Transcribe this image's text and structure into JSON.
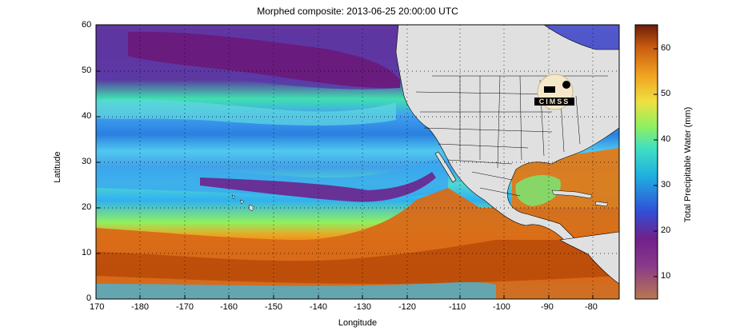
{
  "title": "Morphed composite: 2013-06-25 20:00:00 UTC",
  "xlabel": "Longitude",
  "ylabel": "Latitude",
  "colorbar": {
    "label": "Total Precipitable Water (mm)",
    "ticks": [
      "10",
      "20",
      "30",
      "40",
      "50",
      "60"
    ]
  },
  "logo_text": "CIMSS",
  "chart_data": {
    "type": "heatmap",
    "title": "Morphed composite: 2013-06-25 20:00:00 UTC",
    "xlabel": "Longitude",
    "ylabel": "Latitude",
    "x_ticks": [
      "170",
      "-180",
      "-170",
      "-160",
      "-150",
      "-140",
      "-130",
      "-120",
      "-110",
      "-100",
      "-90",
      "-80"
    ],
    "y_ticks": [
      "0",
      "10",
      "20",
      "30",
      "40",
      "50",
      "60"
    ],
    "xlim": [
      170,
      285
    ],
    "ylim": [
      0,
      60
    ],
    "grid": true,
    "colorbar_range": [
      5,
      65
    ],
    "colorbar_label": "Total Precipitable Water (mm)"
  }
}
